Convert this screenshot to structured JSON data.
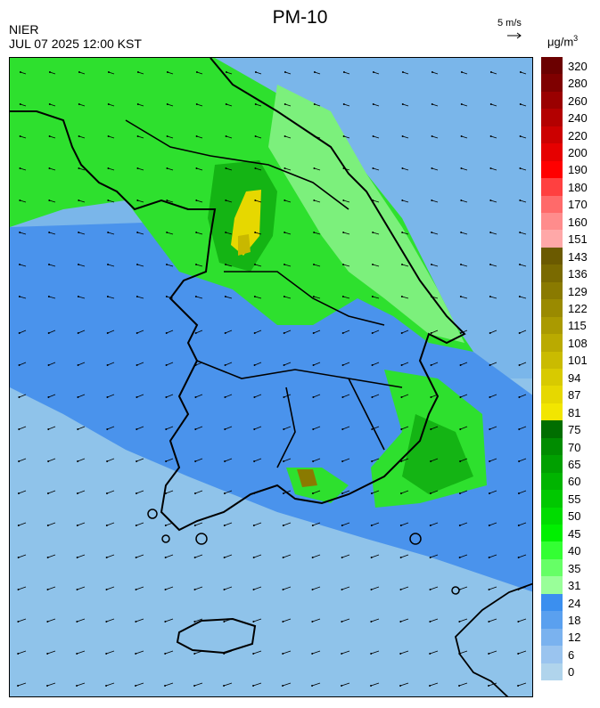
{
  "header": {
    "title": "PM-10",
    "agency": "NIER",
    "timestamp": "JUL 07 2025 12:00 KST",
    "wind_reference": "5 m/s",
    "unit": "μg/m",
    "unit_exponent": "3"
  },
  "legend": {
    "labels": [
      "320",
      "280",
      "260",
      "240",
      "220",
      "200",
      "190",
      "180",
      "170",
      "160",
      "151",
      "143",
      "136",
      "129",
      "122",
      "115",
      "108",
      "101",
      "94",
      "87",
      "81",
      "75",
      "70",
      "65",
      "60",
      "55",
      "50",
      "45",
      "40",
      "35",
      "31",
      "24",
      "18",
      "12",
      "6",
      "0"
    ],
    "colors": [
      "#6b0000",
      "#7f0000",
      "#9a0000",
      "#b30000",
      "#cc0000",
      "#e60000",
      "#ff0000",
      "#ff4040",
      "#ff6a6a",
      "#ff8c8c",
      "#ffa8a8",
      "#6b5a00",
      "#7a6a00",
      "#8a7a00",
      "#9a8a00",
      "#aa9a00",
      "#baaa00",
      "#cabb00",
      "#d8ca00",
      "#e6d800",
      "#f2e600",
      "#006e00",
      "#008c00",
      "#00a000",
      "#00b400",
      "#00c800",
      "#00dc00",
      "#00f000",
      "#33ff33",
      "#66ff66",
      "#99ff99",
      "#3b8fef",
      "#5aa0ef",
      "#7ab2ef",
      "#9ac4ef",
      "#b0d4ec"
    ]
  }
}
